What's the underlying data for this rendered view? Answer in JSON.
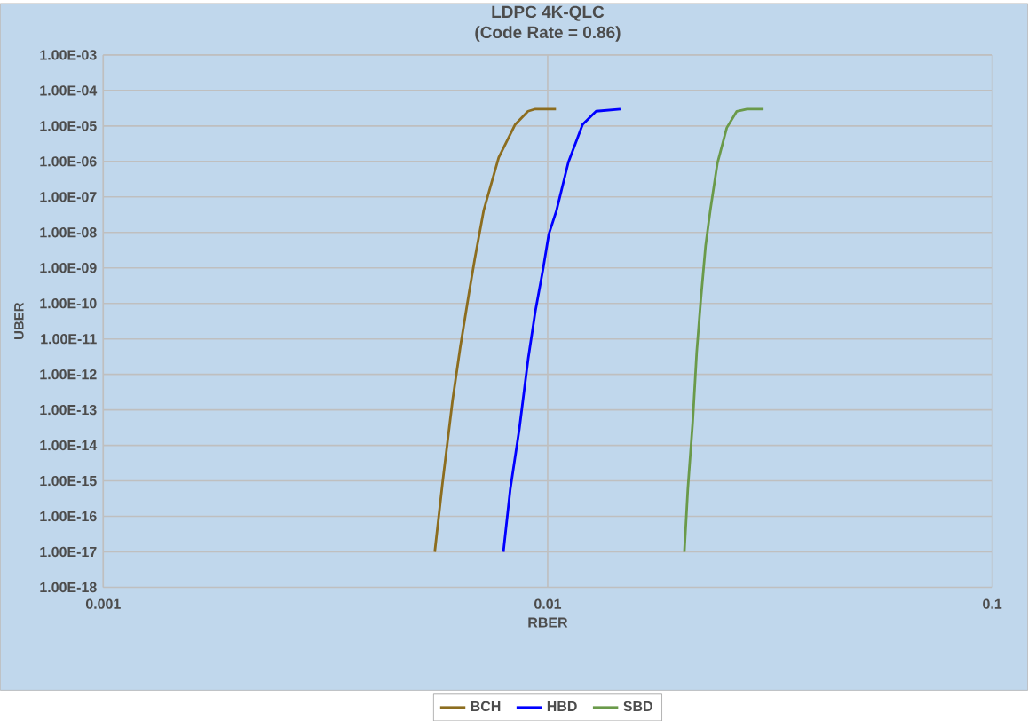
{
  "chart_data": {
    "type": "line",
    "title": "LDPC 4K-QLC",
    "subtitle": "(Code Rate = 0.86)",
    "xlabel": "RBER",
    "ylabel": "UBER",
    "log": "xy",
    "grid": true,
    "legend": "bottom",
    "marker": "none",
    "line_style": "solid",
    "xlim": [
      0.001,
      0.1
    ],
    "xticks": [
      0.001,
      0.01,
      0.1
    ],
    "ylim": [
      1e-18,
      0.001
    ],
    "yticks": [
      {
        "value": 1e-18,
        "label": "1.00E-18"
      },
      {
        "value": 1e-17,
        "label": "1.00E-17"
      },
      {
        "value": 1e-16,
        "label": "1.00E-16"
      },
      {
        "value": 1e-15,
        "label": "1.00E-15"
      },
      {
        "value": 1e-14,
        "label": "1.00E-14"
      },
      {
        "value": 1e-13,
        "label": "1.00E-13"
      },
      {
        "value": 1e-12,
        "label": "1.00E-12"
      },
      {
        "value": 1e-11,
        "label": "1.00E-11"
      },
      {
        "value": 1e-10,
        "label": "1.00E-10"
      },
      {
        "value": 1e-09,
        "label": "1.00E-09"
      },
      {
        "value": 1e-08,
        "label": "1.00E-08"
      },
      {
        "value": 1e-07,
        "label": "1.00E-07"
      },
      {
        "value": 1e-06,
        "label": "1.00E-06"
      },
      {
        "value": 1e-05,
        "label": "1.00E-05"
      },
      {
        "value": 0.0001,
        "label": "1.00E-04"
      },
      {
        "value": 0.001,
        "label": "1.00E-03"
      }
    ],
    "series": [
      {
        "name": "BCH",
        "color": "#8c6d1f",
        "x": [
          0.00557,
          0.0058,
          0.00611,
          0.00636,
          0.00665,
          0.00686,
          0.00718,
          0.00776,
          0.00845,
          0.00903,
          0.00938,
          0.01044
        ],
        "values": [
          1e-17,
          9e-16,
          1.9e-13,
          6e-12,
          1.9e-10,
          1.9e-09,
          4.2e-08,
          1.3e-06,
          1.1e-05,
          2.6e-05,
          3e-05,
          3e-05
        ]
      },
      {
        "name": "HBD",
        "color": "#0000ff",
        "x": [
          0.00795,
          0.00824,
          0.00863,
          0.00904,
          0.00938,
          0.00976,
          0.01006,
          0.01047,
          0.01113,
          0.01198,
          0.01285,
          0.01458
        ],
        "values": [
          1e-17,
          6e-16,
          2.8e-14,
          2.8e-12,
          6e-11,
          9e-10,
          9e-09,
          4.2e-08,
          9.5e-07,
          1.1e-05,
          2.6e-05,
          3e-05
        ]
      },
      {
        "name": "SBD",
        "color": "#6a9a4a",
        "x": [
          0.0203,
          0.02067,
          0.02119,
          0.02164,
          0.02211,
          0.02266,
          0.02322,
          0.02409,
          0.02529,
          0.02664,
          0.02808,
          0.0306
        ],
        "values": [
          1e-17,
          6e-16,
          4.2e-14,
          4.2e-12,
          1.3e-10,
          4.2e-09,
          4.2e-08,
          8.9e-07,
          8.9e-06,
          2.6e-05,
          3e-05,
          3e-05
        ]
      }
    ]
  }
}
